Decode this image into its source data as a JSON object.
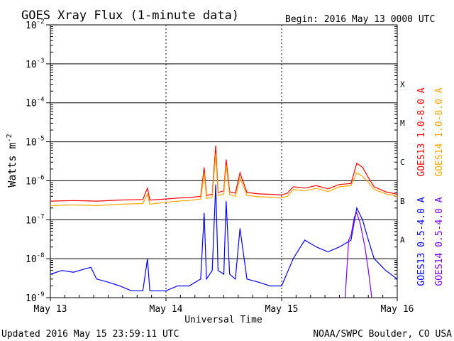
{
  "chart_data": {
    "type": "line",
    "title": "GOES Xray Flux (1-minute data)",
    "begin_text": "Begin:  2016 May 13 0000 UTC",
    "ylabel_main": "Watts m",
    "ylabel_exp": "-2",
    "xlabel": "Universal Time",
    "x_ticks": [
      "May 13",
      "May 14",
      "May 15",
      "May 16"
    ],
    "y_scale": "log",
    "ylim": [
      1e-09,
      0.01
    ],
    "y_ticks": [
      {
        "exp": -2,
        "label": "10",
        "sup": "-2"
      },
      {
        "exp": -3,
        "label": "10",
        "sup": "-3"
      },
      {
        "exp": -4,
        "label": "10",
        "sup": "-4"
      },
      {
        "exp": -5,
        "label": "10",
        "sup": "-5"
      },
      {
        "exp": -6,
        "label": "10",
        "sup": "-6"
      },
      {
        "exp": -7,
        "label": "10",
        "sup": "-7"
      },
      {
        "exp": -8,
        "label": "10",
        "sup": "-8"
      },
      {
        "exp": -9,
        "label": "10",
        "sup": "-9"
      }
    ],
    "flare_classes": [
      {
        "label": "X",
        "exp": -3.5
      },
      {
        "label": "M",
        "exp": -4.5
      },
      {
        "label": "C",
        "exp": -5.5
      },
      {
        "label": "B",
        "exp": -6.5
      },
      {
        "label": "A",
        "exp": -7.5
      }
    ],
    "x_range_days": [
      0,
      3
    ],
    "series": [
      {
        "name": "GOES13 1.0-8.0 A",
        "color": "#ff0000",
        "id": "g13_long",
        "points": [
          [
            0,
            3e-07
          ],
          [
            0.2,
            3.1e-07
          ],
          [
            0.4,
            3e-07
          ],
          [
            0.6,
            3.2e-07
          ],
          [
            0.8,
            3.3e-07
          ],
          [
            0.84,
            6.5e-07
          ],
          [
            0.86,
            3.2e-07
          ],
          [
            1.0,
            3.4e-07
          ],
          [
            1.1,
            3.6e-07
          ],
          [
            1.2,
            3.7e-07
          ],
          [
            1.3,
            4e-07
          ],
          [
            1.33,
            2.2e-06
          ],
          [
            1.35,
            4.2e-07
          ],
          [
            1.4,
            4.5e-07
          ],
          [
            1.43,
            8e-06
          ],
          [
            1.45,
            5e-07
          ],
          [
            1.5,
            5.5e-07
          ],
          [
            1.52,
            3.5e-06
          ],
          [
            1.55,
            5.2e-07
          ],
          [
            1.6,
            4.8e-07
          ],
          [
            1.64,
            1.6e-06
          ],
          [
            1.7,
            5e-07
          ],
          [
            1.8,
            4.6e-07
          ],
          [
            1.9,
            4.5e-07
          ],
          [
            2.0,
            4.3e-07
          ],
          [
            2.05,
            4.8e-07
          ],
          [
            2.1,
            7e-07
          ],
          [
            2.2,
            6.5e-07
          ],
          [
            2.3,
            7.5e-07
          ],
          [
            2.4,
            6.2e-07
          ],
          [
            2.5,
            8e-07
          ],
          [
            2.6,
            8.5e-07
          ],
          [
            2.65,
            2.8e-06
          ],
          [
            2.7,
            2.2e-06
          ],
          [
            2.75,
            1.2e-06
          ],
          [
            2.8,
            7e-07
          ],
          [
            2.9,
            5.2e-07
          ],
          [
            3.0,
            4.5e-07
          ]
        ]
      },
      {
        "name": "GOES14 1.0-8.0 A",
        "color": "#ffa500",
        "id": "g14_long",
        "points": [
          [
            0,
            2.3e-07
          ],
          [
            0.2,
            2.4e-07
          ],
          [
            0.4,
            2.3e-07
          ],
          [
            0.6,
            2.5e-07
          ],
          [
            0.8,
            2.6e-07
          ],
          [
            0.84,
            4.5e-07
          ],
          [
            0.86,
            2.5e-07
          ],
          [
            1.0,
            2.8e-07
          ],
          [
            1.1,
            3e-07
          ],
          [
            1.2,
            3.1e-07
          ],
          [
            1.3,
            3.4e-07
          ],
          [
            1.33,
            1.6e-06
          ],
          [
            1.35,
            3.5e-07
          ],
          [
            1.4,
            3.8e-07
          ],
          [
            1.43,
            5e-06
          ],
          [
            1.45,
            4.2e-07
          ],
          [
            1.5,
            4.6e-07
          ],
          [
            1.52,
            2.5e-06
          ],
          [
            1.55,
            4.4e-07
          ],
          [
            1.6,
            4e-07
          ],
          [
            1.64,
            1.2e-06
          ],
          [
            1.7,
            4.2e-07
          ],
          [
            1.8,
            3.9e-07
          ],
          [
            1.9,
            3.8e-07
          ],
          [
            2.0,
            3.6e-07
          ],
          [
            2.05,
            4e-07
          ],
          [
            2.1,
            6e-07
          ],
          [
            2.2,
            5.5e-07
          ],
          [
            2.3,
            6.4e-07
          ],
          [
            2.4,
            5.3e-07
          ],
          [
            2.5,
            7e-07
          ],
          [
            2.6,
            7.5e-07
          ],
          [
            2.65,
            1.6e-06
          ],
          [
            2.7,
            1.3e-06
          ],
          [
            2.75,
            9e-07
          ],
          [
            2.8,
            6e-07
          ],
          [
            2.9,
            4.6e-07
          ],
          [
            3.0,
            4e-07
          ]
        ]
      },
      {
        "name": "GOES13 0.5-4.0 A",
        "color": "#0000ff",
        "id": "g13_short",
        "points": [
          [
            0,
            4e-09
          ],
          [
            0.1,
            5e-09
          ],
          [
            0.2,
            4.5e-09
          ],
          [
            0.3,
            5.5e-09
          ],
          [
            0.35,
            6e-09
          ],
          [
            0.4,
            3e-09
          ],
          [
            0.5,
            2.5e-09
          ],
          [
            0.6,
            2e-09
          ],
          [
            0.7,
            1.5e-09
          ],
          [
            0.8,
            1.5e-09
          ],
          [
            0.84,
            1e-08
          ],
          [
            0.86,
            1.5e-09
          ],
          [
            1.0,
            1.5e-09
          ],
          [
            1.1,
            2e-09
          ],
          [
            1.2,
            2e-09
          ],
          [
            1.3,
            3e-09
          ],
          [
            1.33,
            1.5e-07
          ],
          [
            1.35,
            3e-09
          ],
          [
            1.4,
            5e-09
          ],
          [
            1.43,
            8e-07
          ],
          [
            1.45,
            5e-09
          ],
          [
            1.5,
            4e-09
          ],
          [
            1.52,
            3e-07
          ],
          [
            1.55,
            4e-09
          ],
          [
            1.6,
            3e-09
          ],
          [
            1.64,
            6e-08
          ],
          [
            1.7,
            3e-09
          ],
          [
            1.8,
            2.5e-09
          ],
          [
            1.9,
            2e-09
          ],
          [
            2.0,
            2e-09
          ],
          [
            2.1,
            1e-08
          ],
          [
            2.2,
            3e-08
          ],
          [
            2.3,
            2e-08
          ],
          [
            2.4,
            1.5e-08
          ],
          [
            2.5,
            2e-08
          ],
          [
            2.6,
            3e-08
          ],
          [
            2.65,
            2e-07
          ],
          [
            2.7,
            1e-07
          ],
          [
            2.75,
            3e-08
          ],
          [
            2.8,
            1e-08
          ],
          [
            2.9,
            5e-09
          ],
          [
            3.0,
            3e-09
          ]
        ]
      },
      {
        "name": "GOES14 0.5-4.0 A",
        "color": "#7f00ff",
        "id": "g14_short",
        "points": [
          [
            2.55,
            1e-09
          ],
          [
            2.58,
            3e-08
          ],
          [
            2.6,
            4e-08
          ],
          [
            2.63,
            1.2e-07
          ],
          [
            2.65,
            1.5e-07
          ],
          [
            2.68,
            8e-08
          ],
          [
            2.72,
            2e-08
          ],
          [
            2.75,
            5e-09
          ],
          [
            2.78,
            1e-09
          ]
        ]
      }
    ],
    "grid": true,
    "legend_position": "right, vertical"
  },
  "footer": {
    "updated": "Updated 2016 May 15 23:59:11 UTC",
    "source": "NOAA/SWPC Boulder, CO USA"
  }
}
